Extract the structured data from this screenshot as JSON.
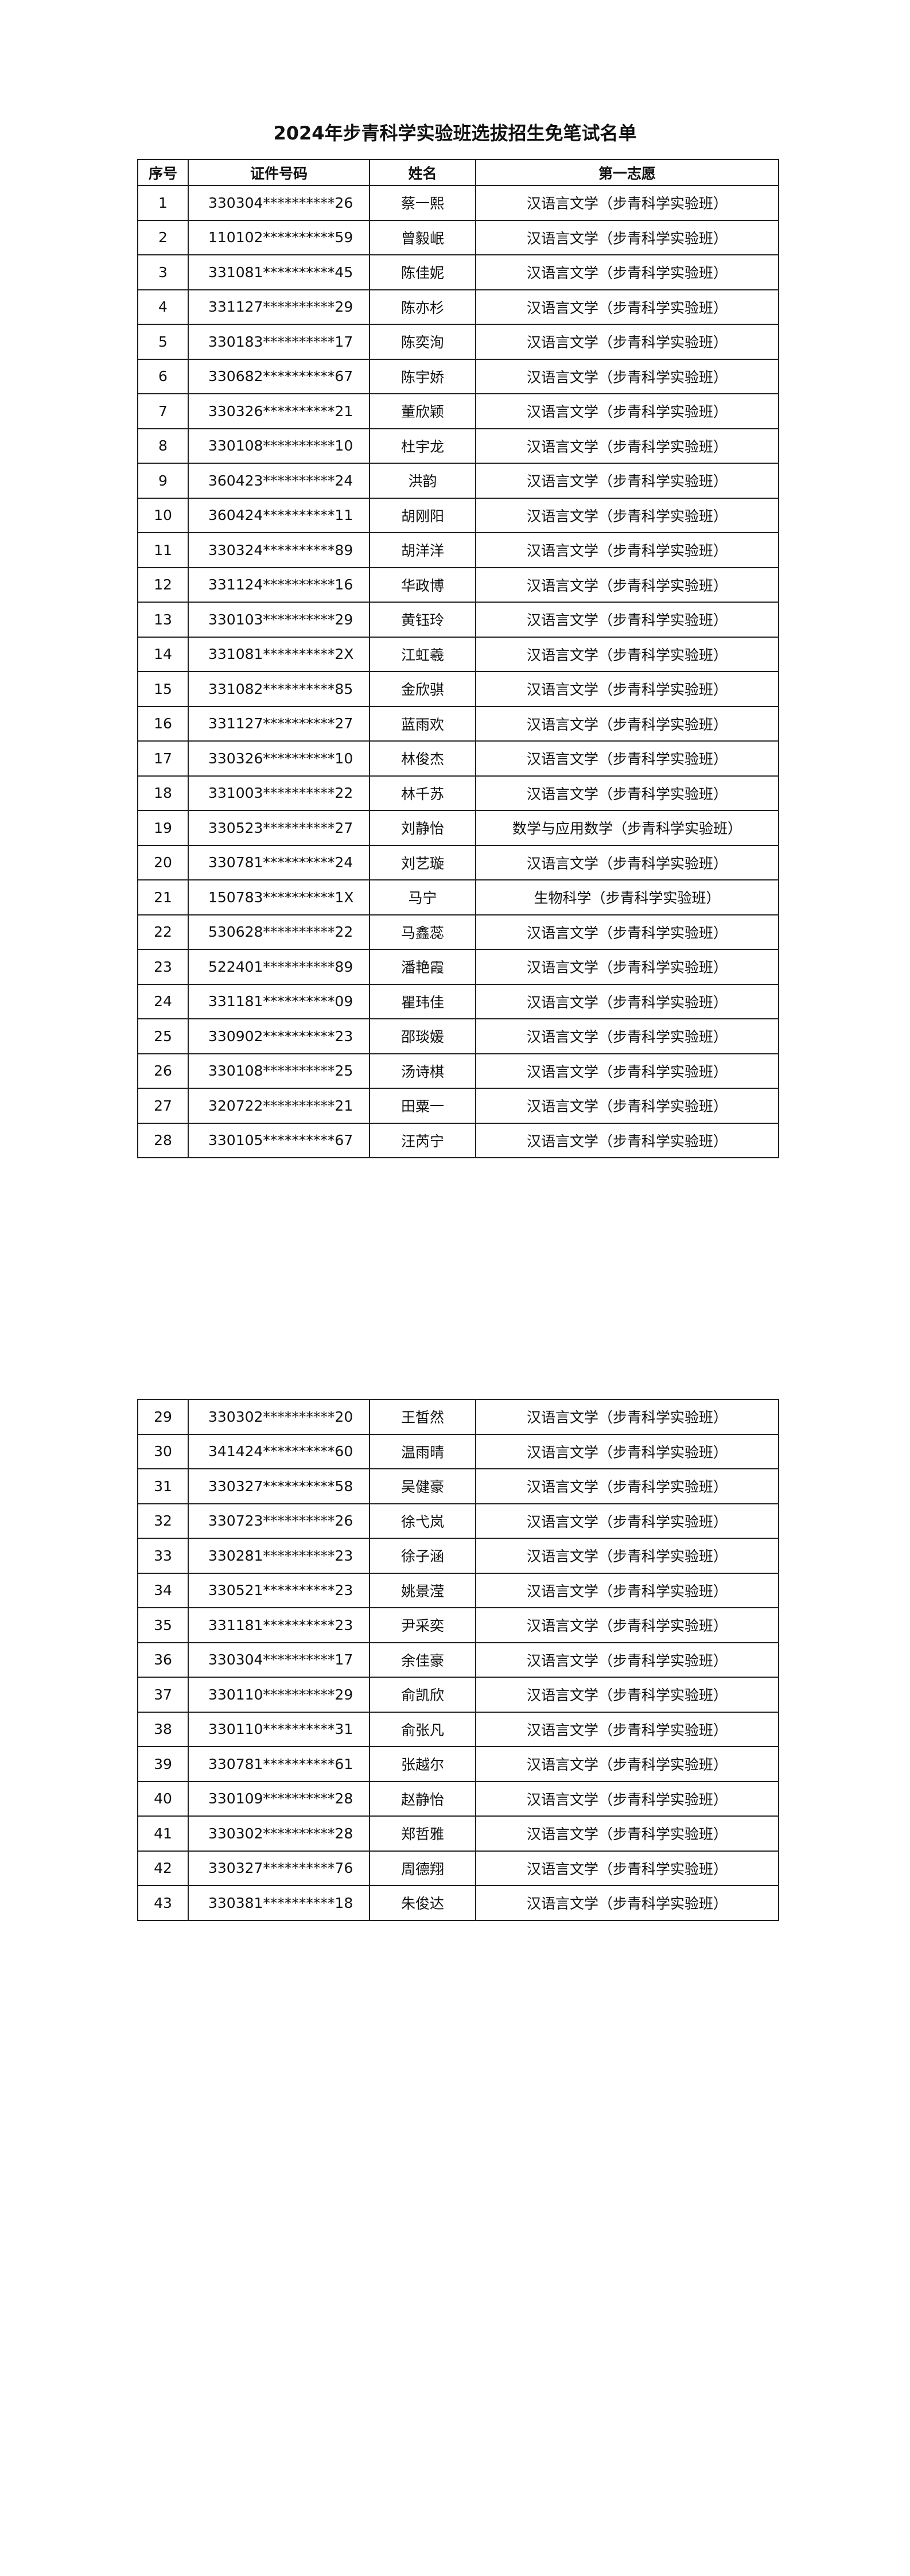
{
  "title": "2024年步青科学实验班选拔招生免笔试名单",
  "headers": [
    "序号",
    "证件号码",
    "姓名",
    "第一志愿"
  ],
  "rows_page1": [
    [
      "1",
      "330304**********26",
      "蔡一熙",
      "汉语言文学（步青科学实验班）"
    ],
    [
      "2",
      "110102**********59",
      "曾毅岷",
      "汉语言文学（步青科学实验班）"
    ],
    [
      "3",
      "331081**********45",
      "陈佳妮",
      "汉语言文学（步青科学实验班）"
    ],
    [
      "4",
      "331127**********29",
      "陈亦杉",
      "汉语言文学（步青科学实验班）"
    ],
    [
      "5",
      "330183**********17",
      "陈奕洵",
      "汉语言文学（步青科学实验班）"
    ],
    [
      "6",
      "330682**********67",
      "陈宇娇",
      "汉语言文学（步青科学实验班）"
    ],
    [
      "7",
      "330326**********21",
      "董欣颖",
      "汉语言文学（步青科学实验班）"
    ],
    [
      "8",
      "330108**********10",
      "杜宇龙",
      "汉语言文学（步青科学实验班）"
    ],
    [
      "9",
      "360423**********24",
      "洪韵",
      "汉语言文学（步青科学实验班）"
    ],
    [
      "10",
      "360424**********11",
      "胡刚阳",
      "汉语言文学（步青科学实验班）"
    ],
    [
      "11",
      "330324**********89",
      "胡洋洋",
      "汉语言文学（步青科学实验班）"
    ],
    [
      "12",
      "331124**********16",
      "华政博",
      "汉语言文学（步青科学实验班）"
    ],
    [
      "13",
      "330103**********29",
      "黄钰玲",
      "汉语言文学（步青科学实验班）"
    ],
    [
      "14",
      "331081**********2X",
      "江虹羲",
      "汉语言文学（步青科学实验班）"
    ],
    [
      "15",
      "331082**********85",
      "金欣骐",
      "汉语言文学（步青科学实验班）"
    ],
    [
      "16",
      "331127**********27",
      "蓝雨欢",
      "汉语言文学（步青科学实验班）"
    ],
    [
      "17",
      "330326**********10",
      "林俊杰",
      "汉语言文学（步青科学实验班）"
    ],
    [
      "18",
      "331003**********22",
      "林千苏",
      "汉语言文学（步青科学实验班）"
    ],
    [
      "19",
      "330523**********27",
      "刘静怡",
      "数学与应用数学（步青科学实验班）"
    ],
    [
      "20",
      "330781**********24",
      "刘艺璇",
      "汉语言文学（步青科学实验班）"
    ],
    [
      "21",
      "150783**********1X",
      "马宁",
      "生物科学（步青科学实验班）"
    ],
    [
      "22",
      "530628**********22",
      "马鑫蕊",
      "汉语言文学（步青科学实验班）"
    ],
    [
      "23",
      "522401**********89",
      "潘艳霞",
      "汉语言文学（步青科学实验班）"
    ],
    [
      "24",
      "331181**********09",
      "瞿玮佳",
      "汉语言文学（步青科学实验班）"
    ],
    [
      "25",
      "330902**********23",
      "邵琰媛",
      "汉语言文学（步青科学实验班）"
    ],
    [
      "26",
      "330108**********25",
      "汤诗棋",
      "汉语言文学（步青科学实验班）"
    ],
    [
      "27",
      "320722**********21",
      "田粟一",
      "汉语言文学（步青科学实验班）"
    ],
    [
      "28",
      "330105**********67",
      "汪芮宁",
      "汉语言文学（步青科学实验班）"
    ]
  ],
  "rows_page2": [
    [
      "29",
      "330302**********20",
      "王皙然",
      "汉语言文学（步青科学实验班）"
    ],
    [
      "30",
      "341424**********60",
      "温雨晴",
      "汉语言文学（步青科学实验班）"
    ],
    [
      "31",
      "330327**********58",
      "吴健豪",
      "汉语言文学（步青科学实验班）"
    ],
    [
      "32",
      "330723**********26",
      "徐弋岚",
      "汉语言文学（步青科学实验班）"
    ],
    [
      "33",
      "330281**********23",
      "徐子涵",
      "汉语言文学（步青科学实验班）"
    ],
    [
      "34",
      "330521**********23",
      "姚景滢",
      "汉语言文学（步青科学实验班）"
    ],
    [
      "35",
      "331181**********23",
      "尹采奕",
      "汉语言文学（步青科学实验班）"
    ],
    [
      "36",
      "330304**********17",
      "余佳豪",
      "汉语言文学（步青科学实验班）"
    ],
    [
      "37",
      "330110**********29",
      "俞凯欣",
      "汉语言文学（步青科学实验班）"
    ],
    [
      "38",
      "330110**********31",
      "俞张凡",
      "汉语言文学（步青科学实验班）"
    ],
    [
      "39",
      "330781**********61",
      "张越尔",
      "汉语言文学（步青科学实验班）"
    ],
    [
      "40",
      "330109**********28",
      "赵静怡",
      "汉语言文学（步青科学实验班）"
    ],
    [
      "41",
      "330302**********28",
      "郑哲雅",
      "汉语言文学（步青科学实验班）"
    ],
    [
      "42",
      "330327**********76",
      "周德翔",
      "汉语言文学（步青科学实验班）"
    ],
    [
      "43",
      "330381**********18",
      "朱俊达",
      "汉语言文学（步青科学实验班）"
    ]
  ]
}
